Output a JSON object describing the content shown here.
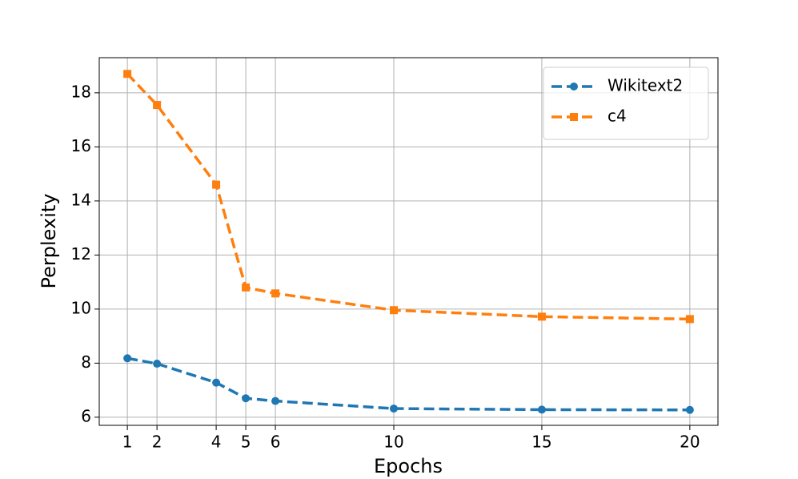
{
  "chart_data": {
    "type": "line",
    "x_label": "Epochs",
    "y_label": "Perplexity",
    "x": [
      1,
      2,
      4,
      5,
      6,
      10,
      15,
      20
    ],
    "series": [
      {
        "name": "Wikitext2",
        "color": "#1f77b4",
        "marker": "circle",
        "values": [
          8.18,
          7.98,
          7.28,
          6.7,
          6.6,
          6.32,
          6.28,
          6.27
        ]
      },
      {
        "name": "c4",
        "color": "#ff7f0e",
        "marker": "square",
        "values": [
          18.7,
          17.55,
          14.6,
          10.8,
          10.58,
          9.96,
          9.72,
          9.63
        ]
      }
    ],
    "xlim": [
      0.05,
      20.95
    ],
    "ylim": [
      5.7,
      19.3
    ],
    "xticks": [
      1,
      2,
      4,
      5,
      6,
      10,
      15,
      20
    ],
    "yticks": [
      6,
      8,
      10,
      12,
      14,
      16,
      18
    ],
    "grid": true,
    "legend": "upper right"
  }
}
